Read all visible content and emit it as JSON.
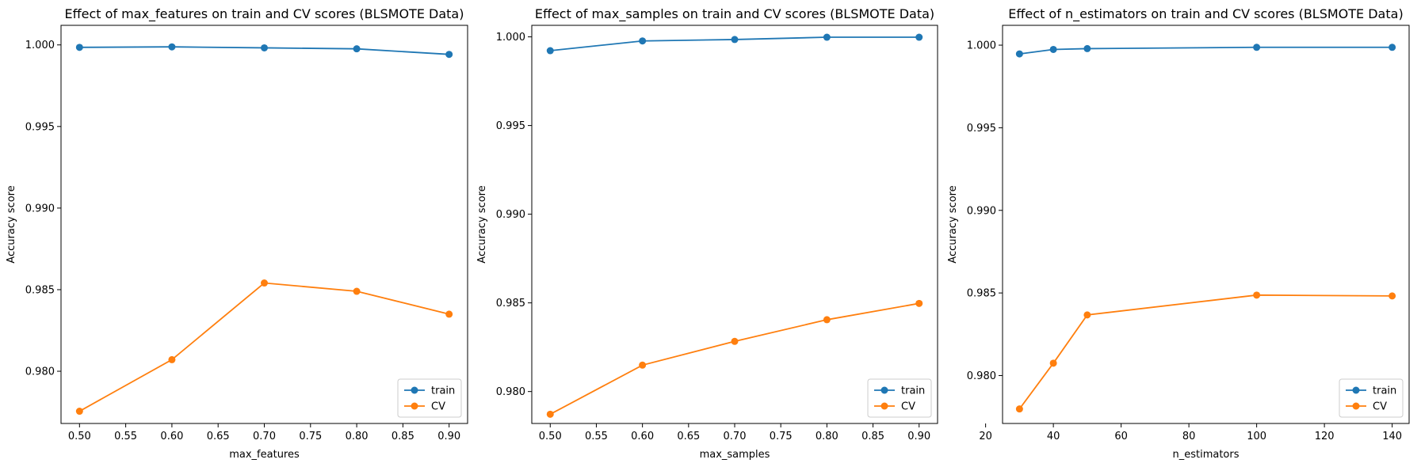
{
  "colors": {
    "train": "#1f77b4",
    "cv": "#ff7f0e"
  },
  "chart_data": [
    {
      "type": "line",
      "title": "Effect of max_features on train and CV scores (BLSMOTE Data)",
      "xlabel": "max_features",
      "ylabel": "Accuracy score",
      "xlim": [
        0.48,
        0.92
      ],
      "ylim": [
        0.9768,
        1.0012
      ],
      "xticks": [
        "0.50",
        "0.55",
        "0.60",
        "0.65",
        "0.70",
        "0.75",
        "0.80",
        "0.85",
        "0.90"
      ],
      "yticks": [
        "0.980",
        "0.985",
        "0.990",
        "0.995",
        "1.000"
      ],
      "x": [
        0.5,
        0.6,
        0.7,
        0.8,
        0.9
      ],
      "series": [
        {
          "name": "train",
          "values": [
            0.99985,
            0.99988,
            0.99982,
            0.99976,
            0.99942
          ]
        },
        {
          "name": "CV",
          "values": [
            0.97755,
            0.98071,
            0.98541,
            0.9849,
            0.9835
          ]
        }
      ],
      "legend": "lower-right",
      "grid": false
    },
    {
      "type": "line",
      "title": "Effect of max_samples on train and CV scores (BLSMOTE Data)",
      "xlabel": "max_samples",
      "ylabel": "Accuracy score",
      "xlim": [
        0.48,
        0.92
      ],
      "ylim": [
        0.9782,
        1.00065
      ],
      "xticks": [
        "0.50",
        "0.55",
        "0.60",
        "0.65",
        "0.70",
        "0.75",
        "0.80",
        "0.85",
        "0.90"
      ],
      "yticks": [
        "0.980",
        "0.985",
        "0.990",
        "0.995",
        "1.000"
      ],
      "x": [
        0.5,
        0.6,
        0.7,
        0.8,
        0.9
      ],
      "series": [
        {
          "name": "train",
          "values": [
            0.99922,
            0.99977,
            0.99985,
            0.99998,
            0.99998
          ]
        },
        {
          "name": "CV",
          "values": [
            0.97872,
            0.98149,
            0.98283,
            0.98405,
            0.98497
          ]
        }
      ],
      "legend": "lower-right",
      "grid": false
    },
    {
      "type": "line",
      "title": "Effect of n_estimators on train and CV scores (BLSMOTE Data)",
      "xlabel": "n_estimators",
      "ylabel": "Accuracy score",
      "xlim": [
        25,
        145
      ],
      "ylim": [
        0.9771,
        1.0012
      ],
      "xticks": [
        "20",
        "40",
        "60",
        "80",
        "100",
        "120",
        "140"
      ],
      "yticks": [
        "0.980",
        "0.985",
        "0.990",
        "0.995",
        "1.000"
      ],
      "x": [
        30,
        40,
        50,
        100,
        140
      ],
      "series": [
        {
          "name": "train",
          "values": [
            0.99947,
            0.99974,
            0.99979,
            0.99987,
            0.99987
          ]
        },
        {
          "name": "CV",
          "values": [
            0.97798,
            0.98075,
            0.98367,
            0.98487,
            0.98482
          ]
        }
      ],
      "legend": "lower-right",
      "grid": false
    }
  ]
}
